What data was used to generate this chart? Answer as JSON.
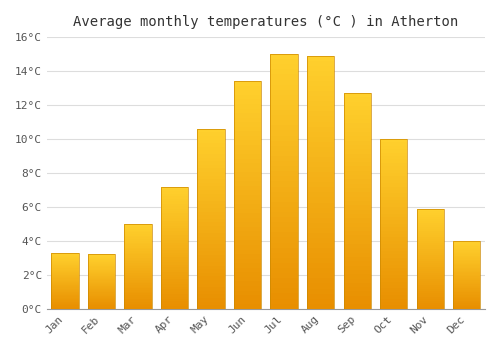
{
  "title": "Average monthly temperatures (°C ) in Atherton",
  "months": [
    "Jan",
    "Feb",
    "Mar",
    "Apr",
    "May",
    "Jun",
    "Jul",
    "Aug",
    "Sep",
    "Oct",
    "Nov",
    "Dec"
  ],
  "values": [
    3.3,
    3.2,
    5.0,
    7.2,
    10.6,
    13.4,
    15.0,
    14.9,
    12.7,
    10.0,
    5.9,
    4.0
  ],
  "bar_color": "#FFA500",
  "bar_edge_color": "#CC8800",
  "background_color": "#FFFFFF",
  "grid_color": "#DDDDDD",
  "ylim": [
    0,
    16
  ],
  "yticks": [
    0,
    2,
    4,
    6,
    8,
    10,
    12,
    14,
    16
  ],
  "ytick_labels": [
    "0°C",
    "2°C",
    "4°C",
    "6°C",
    "8°C",
    "10°C",
    "12°C",
    "14°C",
    "16°C"
  ],
  "title_fontsize": 10,
  "tick_fontsize": 8
}
